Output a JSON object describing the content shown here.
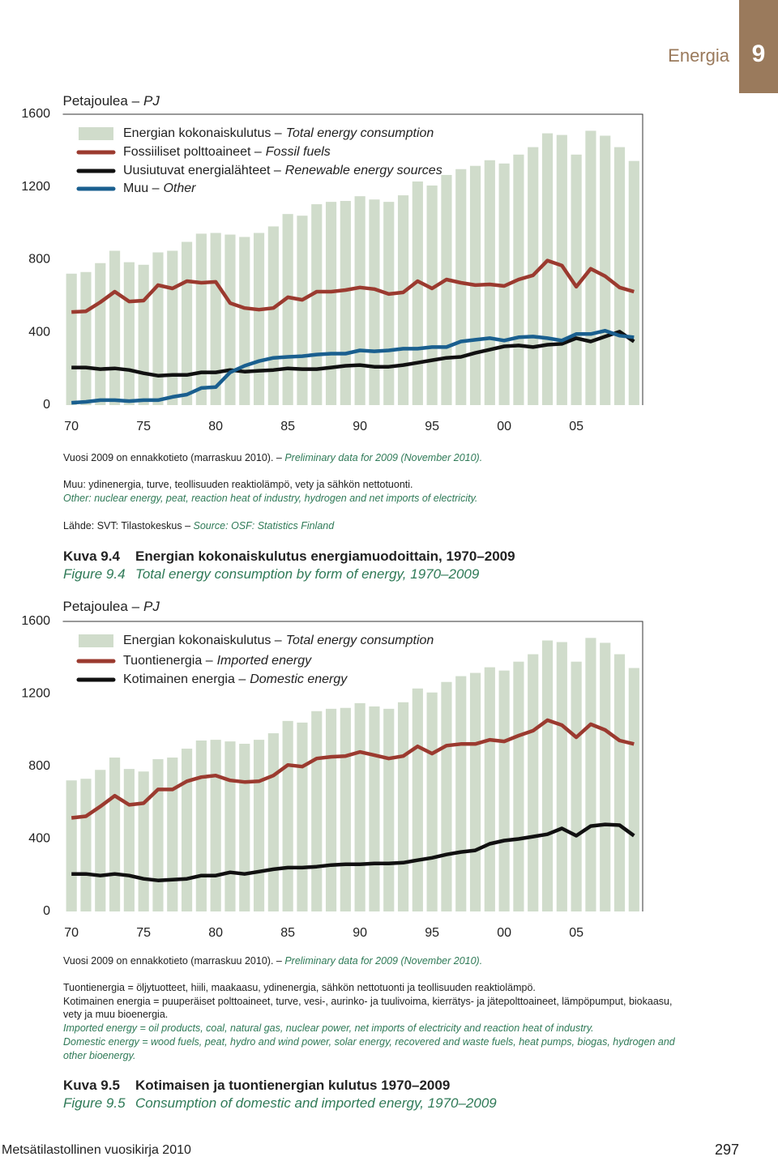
{
  "header": {
    "section": "Energia",
    "number": "9"
  },
  "chart_data": [
    {
      "type": "combo",
      "unit_label": "Petajoulea –",
      "unit_label_en": "PJ",
      "x": [
        1970,
        1971,
        1972,
        1973,
        1974,
        1975,
        1976,
        1977,
        1978,
        1979,
        1980,
        1981,
        1982,
        1983,
        1984,
        1985,
        1986,
        1987,
        1988,
        1989,
        1990,
        1991,
        1992,
        1993,
        1994,
        1995,
        1996,
        1997,
        1998,
        1999,
        2000,
        2001,
        2002,
        2003,
        2004,
        2005,
        2006,
        2007,
        2008,
        2009
      ],
      "xlim": [
        1969.4,
        2009.6
      ],
      "xticks": [
        {
          "value": 1970,
          "label": "70"
        },
        {
          "value": 1975,
          "label": "75"
        },
        {
          "value": 1980,
          "label": "80"
        },
        {
          "value": 1985,
          "label": "85"
        },
        {
          "value": 1990,
          "label": "90"
        },
        {
          "value": 1995,
          "label": "95"
        },
        {
          "value": 2000,
          "label": "00"
        },
        {
          "value": 2005,
          "label": "05"
        }
      ],
      "ylim": [
        0,
        1600
      ],
      "yticks": [
        0,
        400,
        800,
        1200,
        1600
      ],
      "grid": false,
      "series": [
        {
          "name": "Energian kokonaiskulutus –",
          "name_en": "Total energy consumption",
          "kind": "bar",
          "color": "#d0dccb",
          "values": [
            723,
            732,
            781,
            849,
            786,
            772,
            840,
            849,
            898,
            943,
            947,
            938,
            925,
            947,
            983,
            1051,
            1042,
            1105,
            1118,
            1123,
            1149,
            1131,
            1118,
            1154,
            1230,
            1208,
            1266,
            1298,
            1316,
            1347,
            1329,
            1378,
            1419,
            1495,
            1486,
            1378,
            1509,
            1482,
            1419,
            1343
          ]
        },
        {
          "name": "Fossiiliset polttoaineet –",
          "name_en": "Fossil fuels",
          "kind": "line",
          "color": "#9b3a2f",
          "values": [
            512,
            516,
            566,
            624,
            570,
            575,
            660,
            642,
            682,
            673,
            678,
            561,
            534,
            525,
            534,
            593,
            579,
            624,
            624,
            633,
            647,
            638,
            611,
            620,
            682,
            642,
            691,
            673,
            660,
            664,
            655,
            691,
            714,
            795,
            768,
            651,
            750,
            709,
            647,
            624
          ]
        },
        {
          "name": "Uusiutuvat energialähteet –",
          "name_en": "Renewable energy sources",
          "kind": "line",
          "color": "#111111",
          "values": [
            207,
            207,
            198,
            202,
            193,
            175,
            162,
            166,
            166,
            180,
            180,
            193,
            184,
            189,
            193,
            202,
            198,
            198,
            207,
            216,
            220,
            211,
            211,
            220,
            233,
            247,
            260,
            265,
            287,
            305,
            323,
            328,
            319,
            332,
            337,
            368,
            350,
            377,
            404,
            350
          ]
        },
        {
          "name": "Muu –",
          "name_en": "Other",
          "kind": "line",
          "color": "#1a5f8f",
          "values": [
            13,
            18,
            27,
            27,
            22,
            27,
            27,
            45,
            58,
            94,
            99,
            180,
            216,
            242,
            260,
            265,
            269,
            278,
            283,
            283,
            301,
            296,
            301,
            310,
            310,
            319,
            319,
            350,
            359,
            368,
            355,
            373,
            377,
            368,
            355,
            391,
            391,
            409,
            382,
            373
          ]
        }
      ]
    },
    {
      "type": "combo",
      "unit_label": "Petajoulea –",
      "unit_label_en": "PJ",
      "x": [
        1970,
        1971,
        1972,
        1973,
        1974,
        1975,
        1976,
        1977,
        1978,
        1979,
        1980,
        1981,
        1982,
        1983,
        1984,
        1985,
        1986,
        1987,
        1988,
        1989,
        1990,
        1991,
        1992,
        1993,
        1994,
        1995,
        1996,
        1997,
        1998,
        1999,
        2000,
        2001,
        2002,
        2003,
        2004,
        2005,
        2006,
        2007,
        2008,
        2009
      ],
      "xlim": [
        1969.4,
        2009.6
      ],
      "xticks": [
        {
          "value": 1970,
          "label": "70"
        },
        {
          "value": 1975,
          "label": "75"
        },
        {
          "value": 1980,
          "label": "80"
        },
        {
          "value": 1985,
          "label": "85"
        },
        {
          "value": 1990,
          "label": "90"
        },
        {
          "value": 1995,
          "label": "95"
        },
        {
          "value": 2000,
          "label": "00"
        },
        {
          "value": 2005,
          "label": "05"
        }
      ],
      "ylim": [
        0,
        1600
      ],
      "yticks": [
        0,
        400,
        800,
        1200,
        1600
      ],
      "grid": false,
      "series": [
        {
          "name": "Energian kokonaiskulutus –",
          "name_en": "Total energy consumption",
          "kind": "bar",
          "color": "#d0dccb",
          "values": [
            723,
            732,
            781,
            849,
            786,
            772,
            840,
            849,
            898,
            943,
            947,
            938,
            925,
            947,
            983,
            1051,
            1042,
            1105,
            1118,
            1123,
            1149,
            1131,
            1118,
            1154,
            1230,
            1208,
            1266,
            1298,
            1316,
            1347,
            1329,
            1378,
            1419,
            1495,
            1486,
            1378,
            1509,
            1482,
            1419,
            1343
          ]
        },
        {
          "name": "Tuontienergia –",
          "name_en": "Imported energy",
          "kind": "line",
          "color": "#9b3a2f",
          "values": [
            516,
            525,
            579,
            638,
            588,
            597,
            673,
            673,
            718,
            741,
            750,
            723,
            714,
            718,
            750,
            808,
            799,
            844,
            853,
            857,
            880,
            862,
            844,
            857,
            911,
            871,
            915,
            924,
            924,
            947,
            938,
            970,
            997,
            1055,
            1028,
            961,
            1033,
            1001,
            943,
            924
          ]
        },
        {
          "name": "Kotimainen energia –",
          "name_en": "Domestic energy",
          "kind": "line",
          "color": "#111111",
          "values": [
            207,
            207,
            198,
            207,
            198,
            180,
            171,
            175,
            180,
            198,
            198,
            216,
            207,
            220,
            233,
            242,
            242,
            247,
            256,
            260,
            260,
            265,
            265,
            269,
            283,
            296,
            314,
            328,
            337,
            373,
            391,
            400,
            413,
            426,
            458,
            418,
            471,
            480,
            476,
            418
          ]
        }
      ]
    }
  ],
  "figures": [
    {
      "notes": [
        {
          "fi": "Vuosi 2009 on ennakkotieto (marraskuu 2010). –",
          "en": "Preliminary data for 2009 (November 2010)."
        },
        {
          "fi": "Muu: ydinenergia, turve, teollisuuden reaktiolämpö, vety ja sähkön nettotuonti."
        },
        {
          "en": "Other: nuclear energy, peat, reaction heat of industry, hydrogen and net imports of electricity."
        },
        {
          "fi": "Lähde: SVT: Tilastokeskus –",
          "en": "Source: OSF: Statistics Finland"
        }
      ],
      "caption": {
        "num_fi": "Kuva 9.4",
        "title_fi": "Energian kokonaiskulutus energiamuodoittain, 1970–2009",
        "num_en": "Figure 9.4",
        "title_en": "Total energy consumption by form of energy, 1970–2009"
      }
    },
    {
      "notes": [
        {
          "fi": "Vuosi 2009 on ennakkotieto (marraskuu 2010). –",
          "en": "Preliminary data for 2009 (November 2010)."
        },
        {
          "fi": "Tuontienergia = öljytuotteet, hiili, maakaasu, ydinenergia, sähkön nettotuonti ja teollisuuden reaktiolämpö."
        },
        {
          "fi": "Kotimainen energia = puuperäiset polttoaineet, turve, vesi-, aurinko- ja tuulivoima, kierrätys- ja jätepolttoaineet, lämpöpumput, biokaasu, vety ja muu bioenergia."
        },
        {
          "en": "Imported energy = oil products, coal, natural gas, nuclear power, net imports of electricity and reaction heat of industry."
        },
        {
          "en": "Domestic energy = wood fuels, peat, hydro and wind power, solar energy, recovered and waste fuels, heat pumps, biogas, hydrogen and other bioenergy."
        }
      ],
      "caption": {
        "num_fi": "Kuva 9.5",
        "title_fi": "Kotimaisen ja tuontienergian kulutus 1970–2009",
        "num_en": "Figure 9.5",
        "title_en": "Consumption of domestic and imported energy, 1970–2009"
      }
    }
  ],
  "footer": {
    "book": "Metsätilastollinen vuosikirja 2010",
    "page": "297"
  }
}
